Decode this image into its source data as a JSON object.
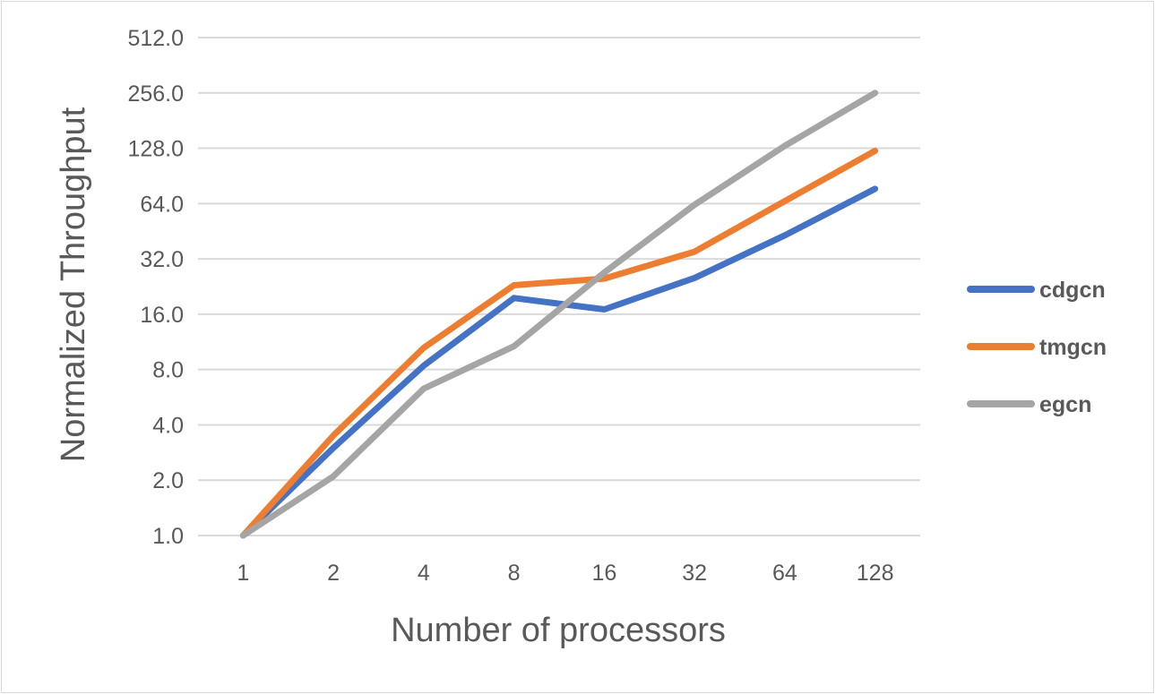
{
  "chart_data": {
    "type": "line",
    "title": "",
    "xlabel": "Number of processors",
    "ylabel": "Normalized Throughput",
    "x": [
      "1",
      "2",
      "4",
      "8",
      "16",
      "32",
      "64",
      "128"
    ],
    "y_scale": "log2",
    "ylim": [
      1,
      512
    ],
    "y_ticks": [
      "1.0",
      "2.0",
      "4.0",
      "8.0",
      "16.0",
      "32.0",
      "64.0",
      "128.0",
      "256.0",
      "512.0"
    ],
    "grid": true,
    "legend_position": "right",
    "series": [
      {
        "name": "cdgcn",
        "color": "#4472c4",
        "values": [
          1.0,
          3.0,
          8.4,
          19.6,
          17.0,
          25.2,
          43.0,
          77.0
        ]
      },
      {
        "name": "tmgcn",
        "color": "#ed7d31",
        "values": [
          1.0,
          3.5,
          10.5,
          23.0,
          25.0,
          35.0,
          66.0,
          124.0
        ]
      },
      {
        "name": "egcn",
        "color": "#a5a5a5",
        "values": [
          1.0,
          2.1,
          6.3,
          10.7,
          27.0,
          63.0,
          132.0,
          256.0
        ]
      }
    ]
  }
}
